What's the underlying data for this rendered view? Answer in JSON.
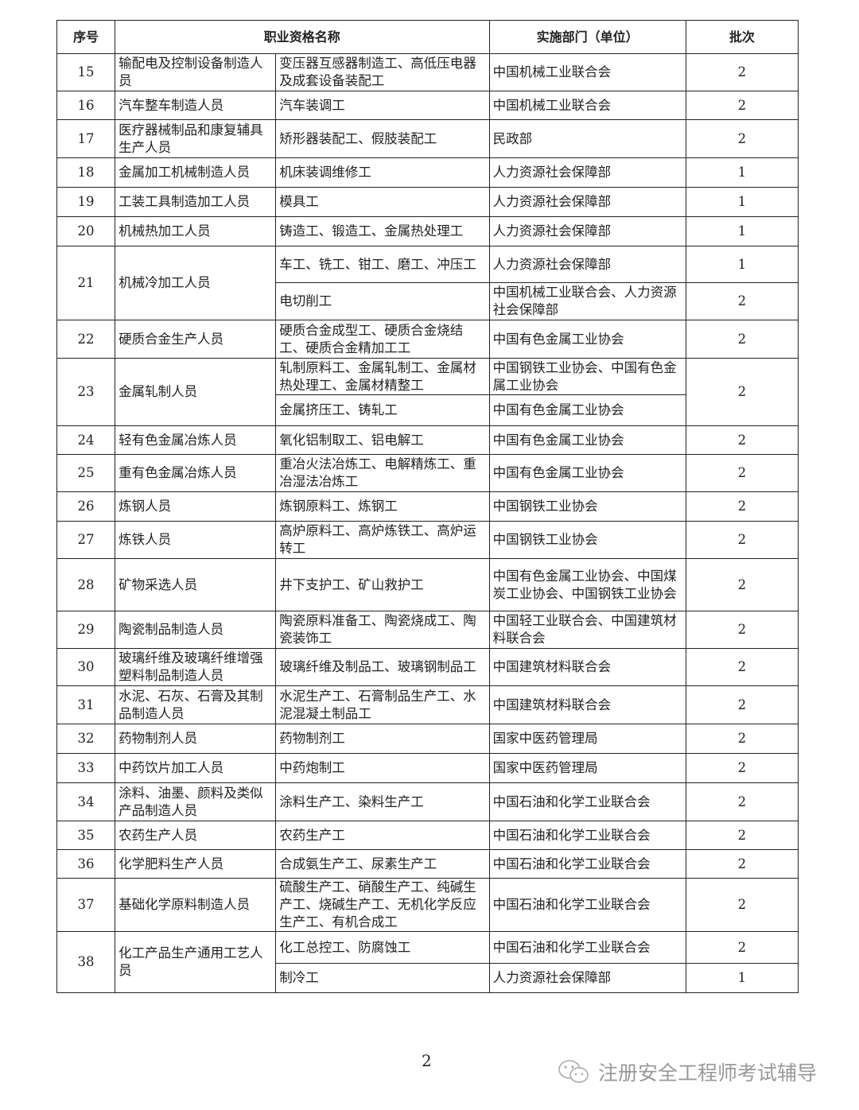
{
  "headers": {
    "no": "序号",
    "name": "职业资格名称",
    "dept": "实施部门（单位）",
    "batch": "批次"
  },
  "rows": [
    {
      "no": "15",
      "category": "输配电及控制设备制造人员",
      "items": [
        {
          "name": "变压器互感器制造工、高低压电器及成套设备装配工",
          "dept": "中国机械工业联合会",
          "batch": "2"
        }
      ]
    },
    {
      "no": "16",
      "category": "汽车整车制造人员",
      "items": [
        {
          "name": "汽车装调工",
          "dept": "中国机械工业联合会",
          "batch": "2"
        }
      ]
    },
    {
      "no": "17",
      "category": "医疗器械制品和康复辅具生产人员",
      "items": [
        {
          "name": "矫形器装配工、假肢装配工",
          "dept": "民政部",
          "batch": "2"
        }
      ]
    },
    {
      "no": "18",
      "category": "金属加工机械制造人员",
      "items": [
        {
          "name": "机床装调维修工",
          "dept": "人力资源社会保障部",
          "batch": "1"
        }
      ]
    },
    {
      "no": "19",
      "category": "工装工具制造加工人员",
      "items": [
        {
          "name": "模具工",
          "dept": "人力资源社会保障部",
          "batch": "1"
        }
      ]
    },
    {
      "no": "20",
      "category": "机械热加工人员",
      "items": [
        {
          "name": "铸造工、锻造工、金属热处理工",
          "dept": "人力资源社会保障部",
          "batch": "1"
        }
      ]
    },
    {
      "no": "21",
      "category": "机械冷加工人员",
      "items": [
        {
          "name": "车工、铣工、钳工、磨工、冲压工",
          "dept": "人力资源社会保障部",
          "batch": "1"
        },
        {
          "name": "电切削工",
          "dept": "中国机械工业联合会、人力资源社会保障部",
          "batch": "2"
        }
      ]
    },
    {
      "no": "22",
      "category": "硬质合金生产人员",
      "items": [
        {
          "name": "硬质合金成型工、硬质合金烧结工、硬质合金精加工工",
          "dept": "中国有色金属工业协会",
          "batch": "2"
        }
      ]
    },
    {
      "no": "23",
      "category": "金属轧制人员",
      "batch": "2",
      "items": [
        {
          "name": "轧制原料工、金属轧制工、金属材热处理工、金属材精整工",
          "dept": "中国钢铁工业协会、中国有色金属工业协会"
        },
        {
          "name": "金属挤压工、铸轧工",
          "dept": "中国有色金属工业协会"
        }
      ]
    },
    {
      "no": "24",
      "category": "轻有色金属冶炼人员",
      "items": [
        {
          "name": "氧化铝制取工、铝电解工",
          "dept": "中国有色金属工业协会",
          "batch": "2"
        }
      ]
    },
    {
      "no": "25",
      "category": "重有色金属冶炼人员",
      "items": [
        {
          "name": "重冶火法冶炼工、电解精炼工、重冶湿法冶炼工",
          "dept": "中国有色金属工业协会",
          "batch": "2"
        }
      ]
    },
    {
      "no": "26",
      "category": "炼钢人员",
      "items": [
        {
          "name": "炼钢原料工、炼钢工",
          "dept": "中国钢铁工业协会",
          "batch": "2"
        }
      ]
    },
    {
      "no": "27",
      "category": "炼铁人员",
      "items": [
        {
          "name": "高炉原料工、高炉炼铁工、高炉运转工",
          "dept": "中国钢铁工业协会",
          "batch": "2"
        }
      ]
    },
    {
      "no": "28",
      "category": "矿物采选人员",
      "items": [
        {
          "name": "井下支护工、矿山救护工",
          "dept": "中国有色金属工业协会、中国煤炭工业协会、中国钢铁工业协会",
          "batch": "2"
        }
      ]
    },
    {
      "no": "29",
      "category": "陶瓷制品制造人员",
      "items": [
        {
          "name": "陶瓷原料准备工、陶瓷烧成工、陶瓷装饰工",
          "dept": "中国轻工业联合会、中国建筑材料联合会",
          "batch": "2"
        }
      ]
    },
    {
      "no": "30",
      "category": "玻璃纤维及玻璃纤维增强塑料制品制造人员",
      "items": [
        {
          "name": "玻璃纤维及制品工、玻璃钢制品工",
          "dept": "中国建筑材料联合会",
          "batch": "2"
        }
      ]
    },
    {
      "no": "31",
      "category": "水泥、石灰、石膏及其制品制造人员",
      "items": [
        {
          "name": "水泥生产工、石膏制品生产工、水泥混凝土制品工",
          "dept": "中国建筑材料联合会",
          "batch": "2"
        }
      ]
    },
    {
      "no": "32",
      "category": "药物制剂人员",
      "items": [
        {
          "name": "药物制剂工",
          "dept": "国家中医药管理局",
          "batch": "2"
        }
      ]
    },
    {
      "no": "33",
      "category": "中药饮片加工人员",
      "items": [
        {
          "name": "中药炮制工",
          "dept": "国家中医药管理局",
          "batch": "2"
        }
      ]
    },
    {
      "no": "34",
      "category": "涂料、油墨、颜料及类似产品制造人员",
      "items": [
        {
          "name": "涂料生产工、染料生产工",
          "dept": "中国石油和化学工业联合会",
          "batch": "2"
        }
      ]
    },
    {
      "no": "35",
      "category": "农药生产人员",
      "items": [
        {
          "name": "农药生产工",
          "dept": "中国石油和化学工业联合会",
          "batch": "2"
        }
      ]
    },
    {
      "no": "36",
      "category": "化学肥料生产人员",
      "items": [
        {
          "name": "合成氨生产工、尿素生产工",
          "dept": "中国石油和化学工业联合会",
          "batch": "2"
        }
      ]
    },
    {
      "no": "37",
      "category": "基础化学原料制造人员",
      "items": [
        {
          "name": "硫酸生产工、硝酸生产工、纯碱生产工、烧碱生产工、无机化学反应生产工、有机合成工",
          "dept": "中国石油和化学工业联合会",
          "batch": "2"
        }
      ]
    },
    {
      "no": "38",
      "category": "化工产品生产通用工艺人员",
      "items": [
        {
          "name": "化工总控工、防腐蚀工",
          "dept": "中国石油和化学工业联合会",
          "batch": "2"
        },
        {
          "name": "制冷工",
          "dept": "人力资源社会保障部",
          "batch": "1"
        }
      ]
    }
  ],
  "footer": {
    "page_number": "2",
    "watermark": "注册安全工程师考试辅导",
    "watermark_icon": "wechat-icon"
  }
}
